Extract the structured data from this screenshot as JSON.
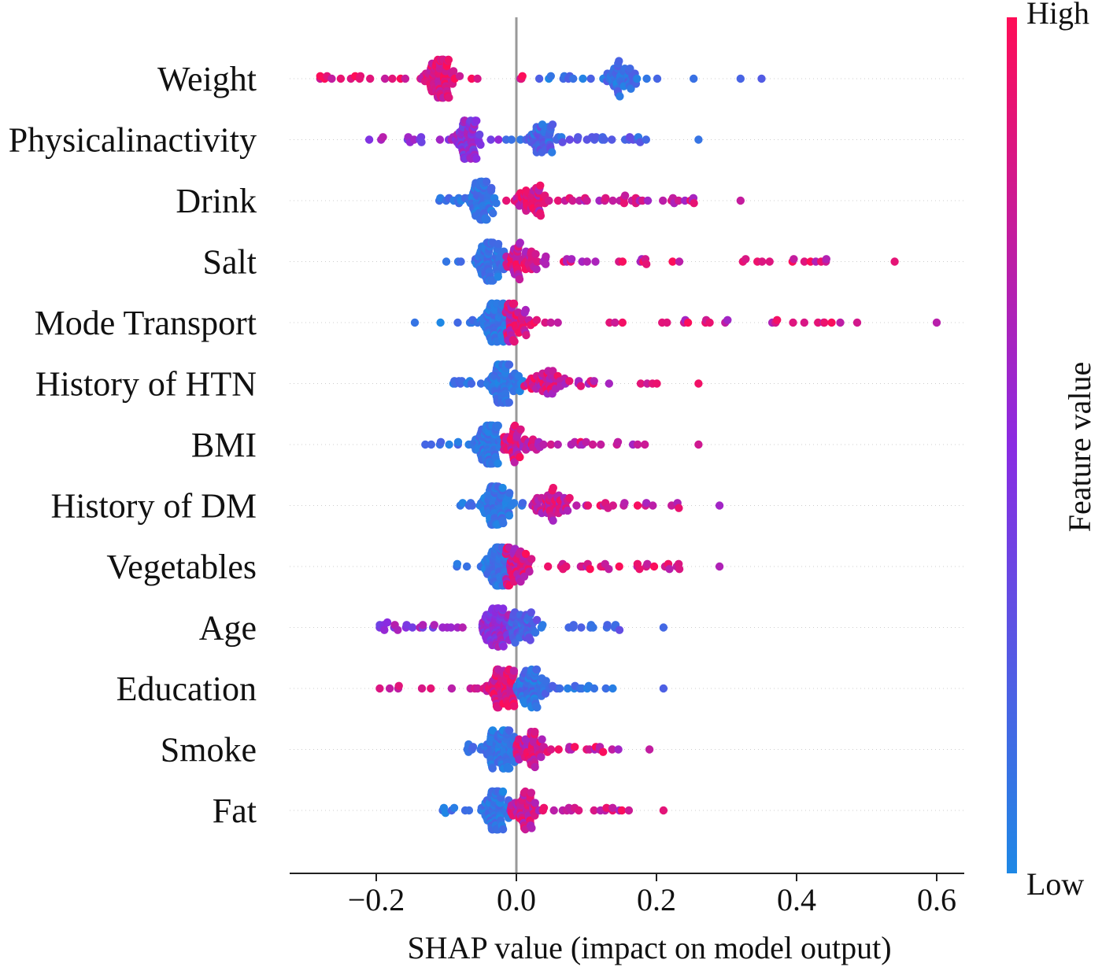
{
  "chart_data": {
    "type": "scatter",
    "subtype": "shap-beeswarm",
    "xlabel": "SHAP value (impact on model output)",
    "xlim": [
      -0.32,
      0.64
    ],
    "xticks": [
      {
        "value": -0.2,
        "label": "−0.2"
      },
      {
        "value": 0.0,
        "label": "0.0"
      },
      {
        "value": 0.2,
        "label": "0.2"
      },
      {
        "value": 0.4,
        "label": "0.4"
      },
      {
        "value": 0.6,
        "label": "0.6"
      }
    ],
    "colorbar": {
      "title": "Feature value",
      "high_label": "High",
      "low_label": "Low",
      "high_color": "#ff0d57",
      "low_color": "#1e88e5"
    },
    "features": [
      {
        "name": "Weight",
        "min": -0.28,
        "max": 0.35,
        "dense_left": -0.11,
        "dense_right": 0.15,
        "neg_color": "high",
        "extremes": [
          -0.28,
          -0.23,
          0.32,
          0.35
        ]
      },
      {
        "name": "Physicalinactivity",
        "min": -0.21,
        "max": 0.26,
        "dense_left": -0.07,
        "dense_right": 0.04,
        "neg_color": "mid",
        "extremes": [
          0.26
        ]
      },
      {
        "name": "Drink",
        "min": -0.11,
        "max": 0.32,
        "dense_left": -0.05,
        "dense_right": 0.02,
        "neg_color": "low",
        "extremes": [
          0.32
        ]
      },
      {
        "name": "Salt",
        "min": -0.1,
        "max": 0.54,
        "dense_left": -0.04,
        "dense_right": 0.01,
        "neg_color": "low",
        "extremes": [
          0.42,
          0.435,
          0.54
        ]
      },
      {
        "name": "Mode Transport",
        "min": -0.145,
        "max": 0.6,
        "dense_left": -0.03,
        "dense_right": 0.0,
        "neg_color": "low",
        "extremes": [
          0.27,
          0.395,
          0.45,
          0.6
        ]
      },
      {
        "name": "History of HTN",
        "min": -0.09,
        "max": 0.26,
        "dense_left": -0.02,
        "dense_right": 0.04,
        "neg_color": "low",
        "extremes": [
          0.26
        ]
      },
      {
        "name": "BMI",
        "min": -0.13,
        "max": 0.26,
        "dense_left": -0.04,
        "dense_right": 0.0,
        "neg_color": "low",
        "extremes": [
          0.26
        ]
      },
      {
        "name": "History of DM",
        "min": -0.08,
        "max": 0.29,
        "dense_left": -0.03,
        "dense_right": 0.05,
        "neg_color": "low",
        "extremes": [
          0.29
        ]
      },
      {
        "name": "Vegetables",
        "min": -0.085,
        "max": 0.29,
        "dense_left": -0.03,
        "dense_right": 0.0,
        "neg_color": "low",
        "extremes": [
          0.29
        ]
      },
      {
        "name": "Age",
        "min": -0.195,
        "max": 0.21,
        "dense_left": -0.03,
        "dense_right": 0.01,
        "neg_color": "mid",
        "extremes": [
          0.21
        ]
      },
      {
        "name": "Education",
        "min": -0.195,
        "max": 0.21,
        "dense_left": -0.02,
        "dense_right": 0.02,
        "neg_color": "high",
        "extremes": [
          0.21
        ]
      },
      {
        "name": "Smoke",
        "min": -0.07,
        "max": 0.19,
        "dense_left": -0.02,
        "dense_right": 0.02,
        "neg_color": "low",
        "extremes": [
          0.19
        ]
      },
      {
        "name": "Fat",
        "min": -0.105,
        "max": 0.21,
        "dense_left": -0.03,
        "dense_right": 0.01,
        "neg_color": "low",
        "extremes": [
          0.21
        ]
      }
    ]
  }
}
